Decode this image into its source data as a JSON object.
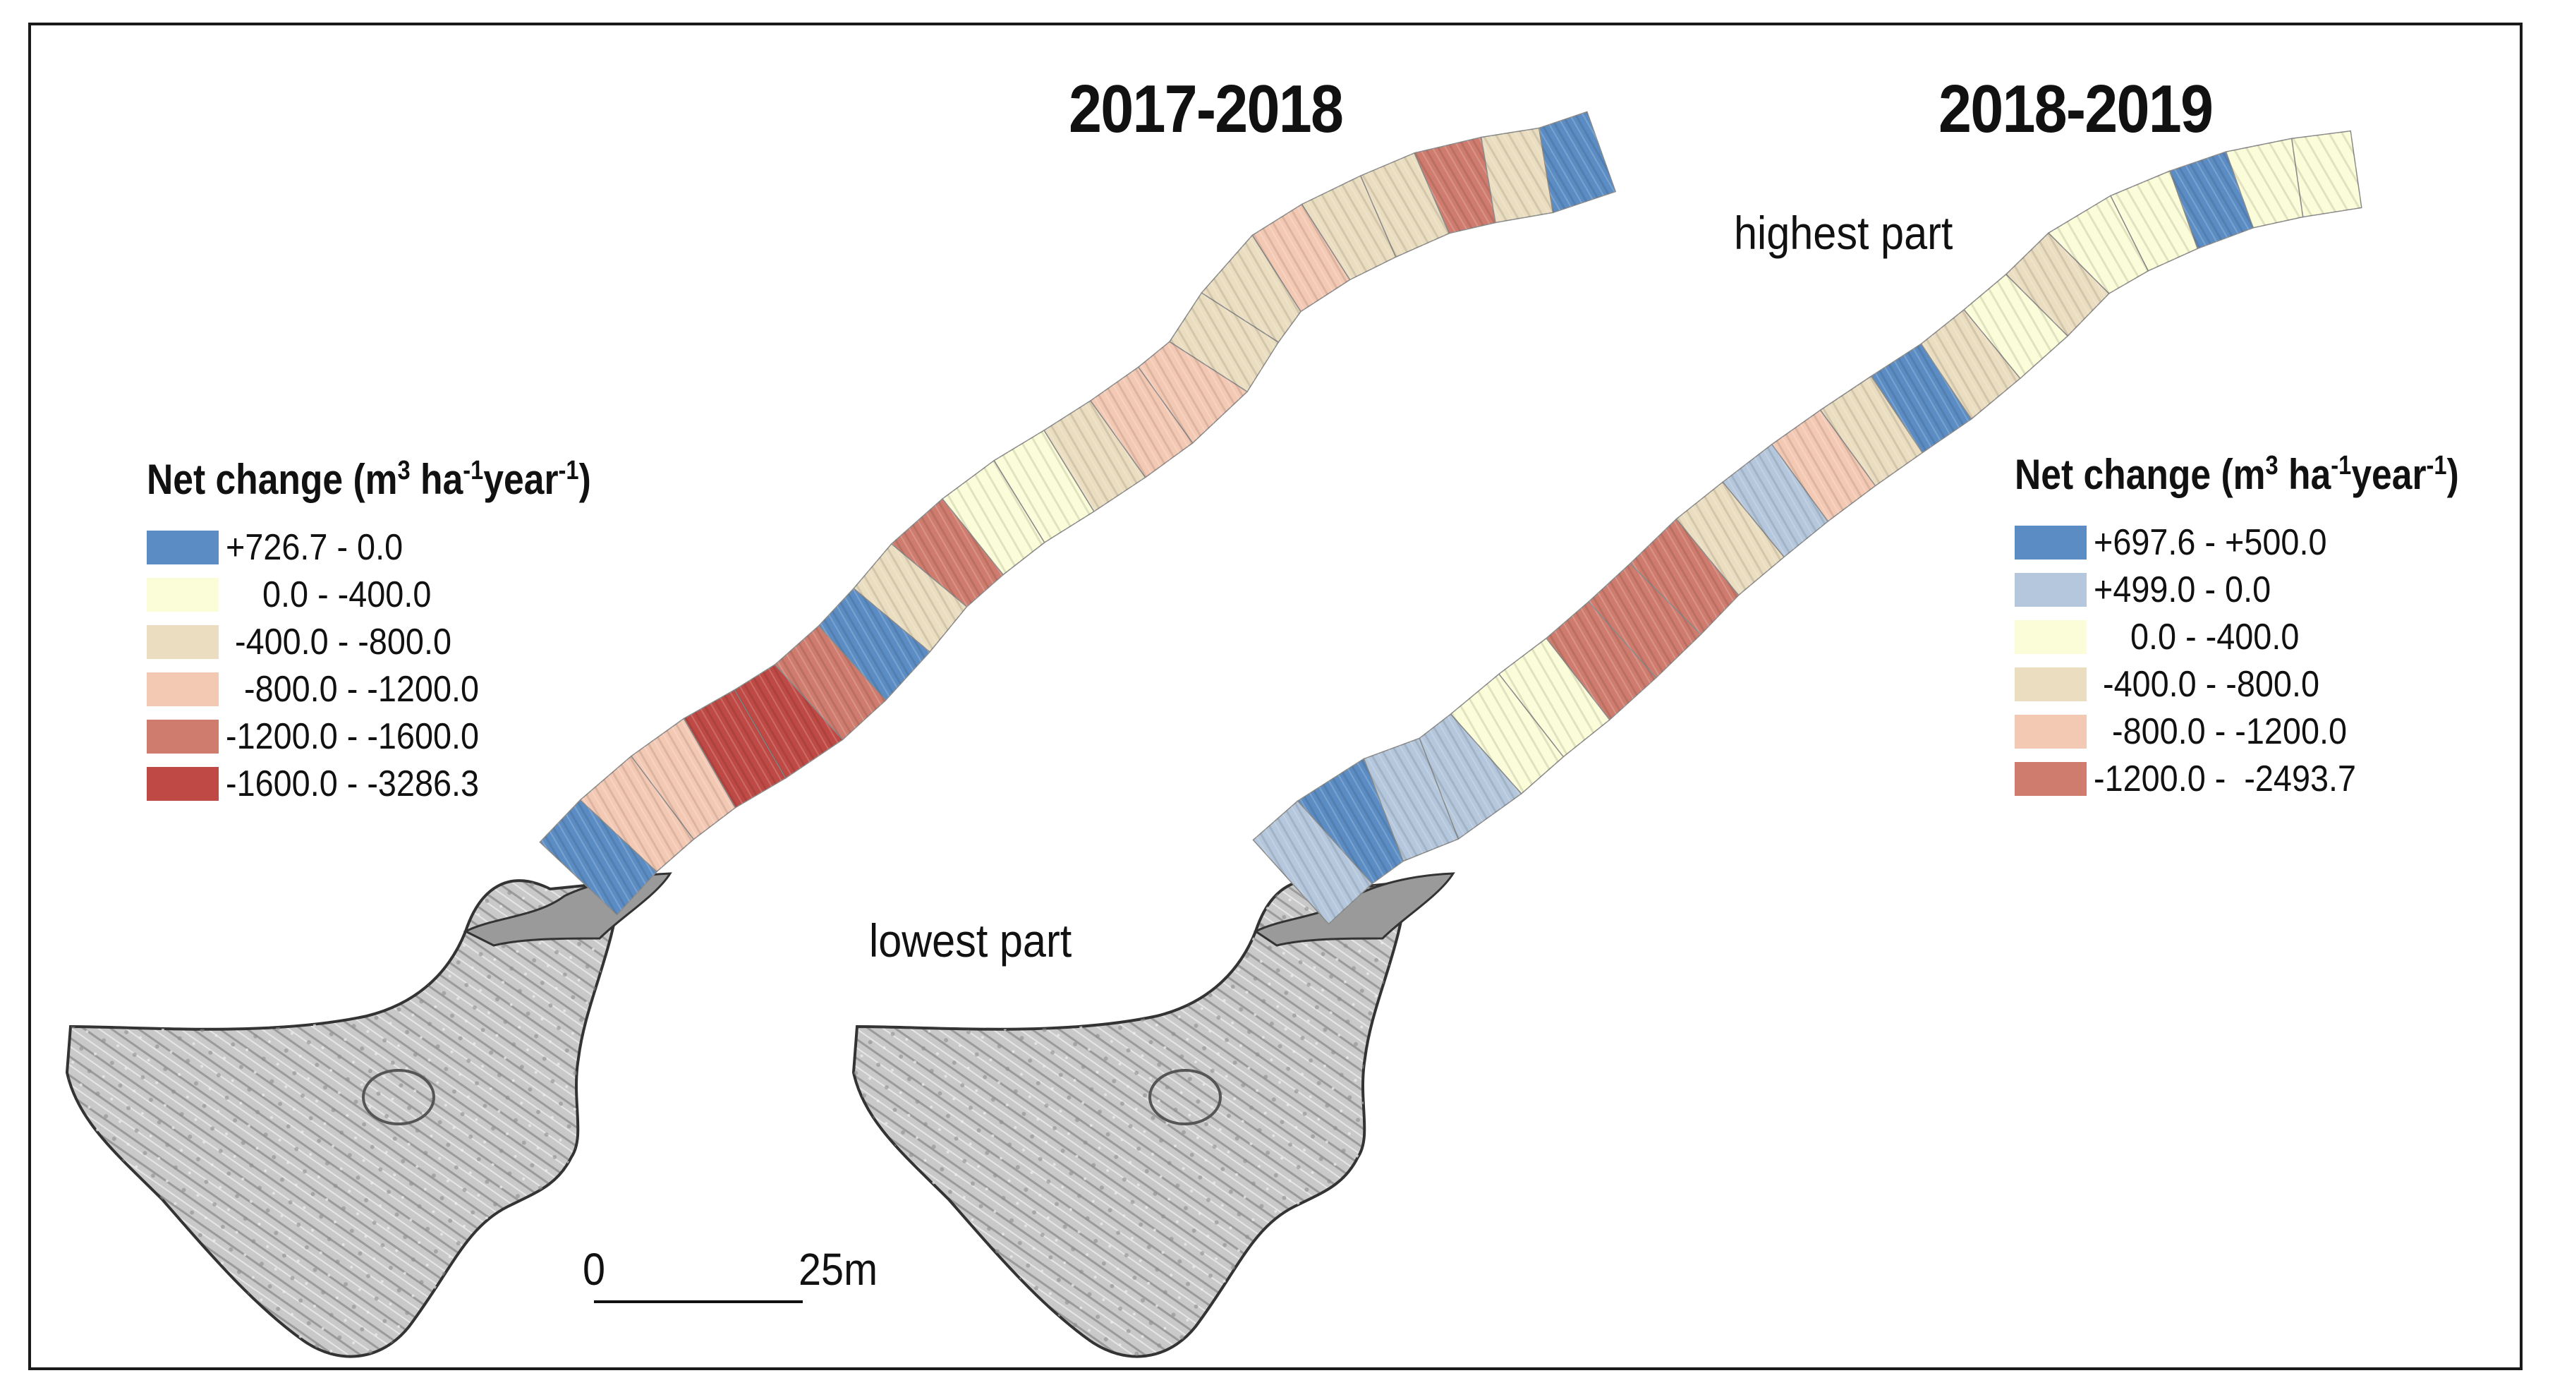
{
  "panels": [
    {
      "title": "2017-2018"
    },
    {
      "title": "2018-2019"
    }
  ],
  "annotations": {
    "highest_part": "highest part",
    "lowest_part": "lowest part"
  },
  "scale_bar": {
    "start_label": "0",
    "end_label": "25m"
  },
  "legends": [
    {
      "title_main": "Net change (m",
      "title_sup1": "3",
      "title_mid": " ha",
      "title_sup2": "-1",
      "title_mid2": "year",
      "title_sup3": "-1",
      "title_end": ")",
      "items": [
        {
          "label": "+726.7 - 0.0",
          "color": "#5b8dc4"
        },
        {
          "label": "    0.0 - -400.0",
          "color": "#fbfcd8"
        },
        {
          "label": " -400.0 - -800.0",
          "color": "#eaddc0"
        },
        {
          "label": "  -800.0 - -1200.0",
          "color": "#f4c9b4"
        },
        {
          "label": "-1200.0 - -1600.0",
          "color": "#cf7c6e"
        },
        {
          "label": "-1600.0 - -3286.3",
          "color": "#bf4a45"
        }
      ]
    },
    {
      "title_main": "Net change (m",
      "title_sup1": "3",
      "title_mid": " ha",
      "title_sup2": "-1",
      "title_mid2": "year",
      "title_sup3": "-1",
      "title_end": ")",
      "items": [
        {
          "label": "+697.6 - +500.0",
          "color": "#5b8dc4"
        },
        {
          "label": "+499.0 - 0.0",
          "color": "#b4c7dc"
        },
        {
          "label": "    0.0 - -400.0",
          "color": "#fbfcd8"
        },
        {
          "label": " -400.0 - -800.0",
          "color": "#eaddc0"
        },
        {
          "label": "  -800.0 - -1200.0",
          "color": "#f4c9b4"
        },
        {
          "label": "-1200.0 -  -2493.7",
          "color": "#cf7c6e"
        }
      ]
    }
  ],
  "channel_segments": [
    {
      "panel": 0,
      "colors": [
        "#5b8dc4",
        "#f4c9b4",
        "#f4c9b4",
        "#bf4a45",
        "#bf4a45",
        "#cf7c6e",
        "#5b8dc4",
        "#eaddc0",
        "#cf7c6e",
        "#fbfcd8",
        "#fbfcd8",
        "#eaddc0",
        "#f4c9b4",
        "#f4c9b4",
        "#eaddc0",
        "#eaddc0",
        "#f4c9b4",
        "#eaddc0",
        "#eaddc0",
        "#cf7c6e",
        "#eaddc0",
        "#5b8dc4"
      ]
    },
    {
      "panel": 1,
      "colors": [
        "#b4c7dc",
        "#5b8dc4",
        "#b4c7dc",
        "#b4c7dc",
        "#fbfcd8",
        "#fbfcd8",
        "#cf7c6e",
        "#cf7c6e",
        "#cf7c6e",
        "#eaddc0",
        "#b4c7dc",
        "#f4c9b4",
        "#eaddc0",
        "#5b8dc4",
        "#eaddc0",
        "#fbfcd8",
        "#eaddc0",
        "#fbfcd8",
        "#fbfcd8",
        "#5b8dc4",
        "#fbfcd8",
        "#fbfcd8"
      ]
    }
  ]
}
